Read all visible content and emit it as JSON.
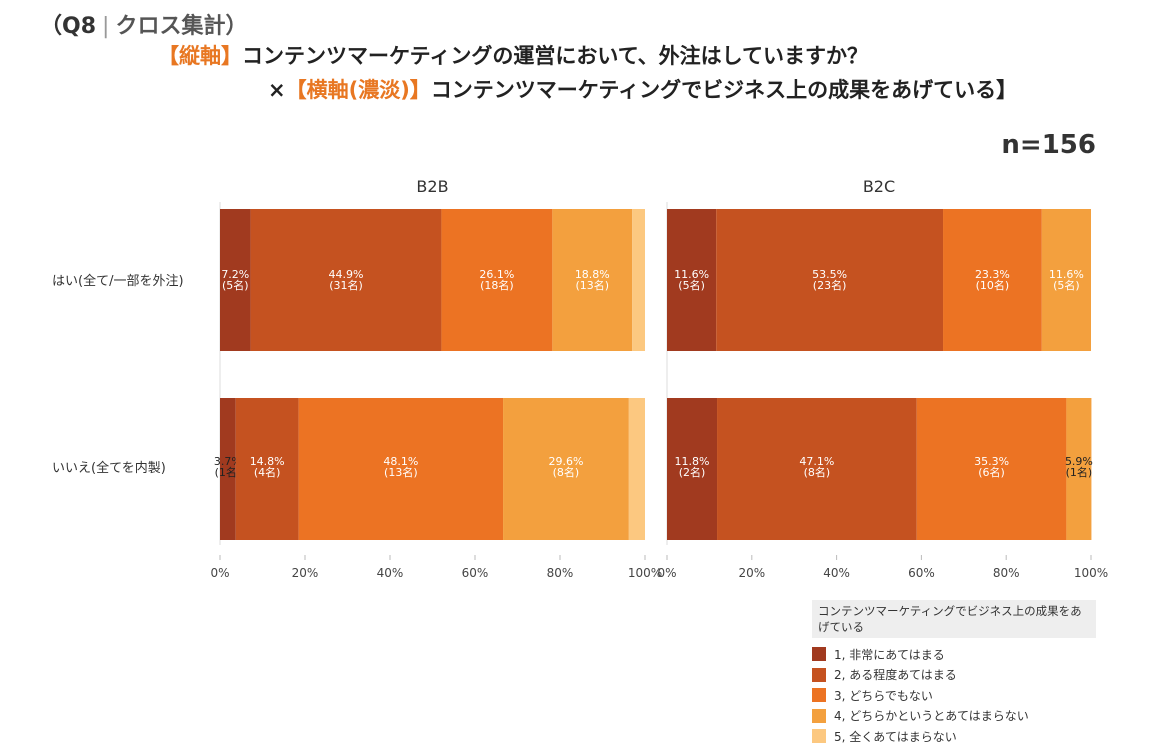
{
  "header": {
    "q_label": "（Q8",
    "q_sub": "クロス集計）",
    "line2_bracket": "【縦軸】",
    "line2_text": "コンテンツマーケティングの運営において、外注はしていますか？",
    "line3_prefix": "×",
    "line3_bracket": "【横軸(濃淡)】",
    "line3_text": "コンテンツマーケティングでビジネス上の成果をあげている】",
    "n_label": "n=156"
  },
  "chart_data": {
    "type": "bar",
    "orientation": "horizontal-stacked-100",
    "panels": [
      "B2B",
      "B2C"
    ],
    "rows": [
      "はい(全て/一部を外注)",
      "いいえ(全てを内製)"
    ],
    "series": [
      {
        "name": "1, 非常にあてはまる",
        "color": "#a13a1f"
      },
      {
        "name": "2, ある程度あてはまる",
        "color": "#c55220"
      },
      {
        "name": "3, どちらでもない",
        "color": "#ec7323"
      },
      {
        "name": "4, どちらかというとあてはまらない",
        "color": "#f3a03e"
      },
      {
        "name": "5, 全くあてはまらない",
        "color": "#fcc880"
      }
    ],
    "values": {
      "B2B": [
        [
          7.2,
          44.9,
          26.1,
          18.8,
          3.0
        ],
        [
          3.7,
          14.8,
          48.1,
          29.6,
          3.8
        ]
      ],
      "B2C": [
        [
          11.6,
          53.5,
          23.3,
          11.6,
          0
        ],
        [
          11.8,
          47.1,
          35.3,
          5.9,
          0
        ]
      ]
    },
    "labels": {
      "B2B": [
        [
          "7.2%\n(5名)",
          "44.9%\n(31名)",
          "26.1%\n(18名)",
          "18.8%\n(13名)",
          ""
        ],
        [
          "3.7%\n(1名)",
          "14.8%\n(4名)",
          "48.1%\n(13名)",
          "29.6%\n(8名)",
          ""
        ]
      ],
      "B2C": [
        [
          "11.6%\n(5名)",
          "53.5%\n(23名)",
          "23.3%\n(10名)",
          "11.6%\n(5名)",
          ""
        ],
        [
          "11.8%\n(2名)",
          "47.1%\n(8名)",
          "35.3%\n(6名)",
          "5.9%\n(1名)",
          ""
        ]
      ]
    },
    "x_ticks": [
      "0%",
      "20%",
      "40%",
      "60%",
      "80%",
      "100%"
    ],
    "xlim": [
      0,
      100
    ]
  },
  "legend": {
    "title": "コンテンツマーケティングでビジネス上の成果をあげている",
    "items": [
      {
        "label": "1, 非常にあてはまる",
        "color": "#a13a1f"
      },
      {
        "label": "2, ある程度あてはまる",
        "color": "#c55220"
      },
      {
        "label": "3, どちらでもない",
        "color": "#ec7323"
      },
      {
        "label": "4, どちらかというとあてはまらない",
        "color": "#f3a03e"
      },
      {
        "label": "5, 全くあてはまらない",
        "color": "#fcc880"
      }
    ]
  }
}
